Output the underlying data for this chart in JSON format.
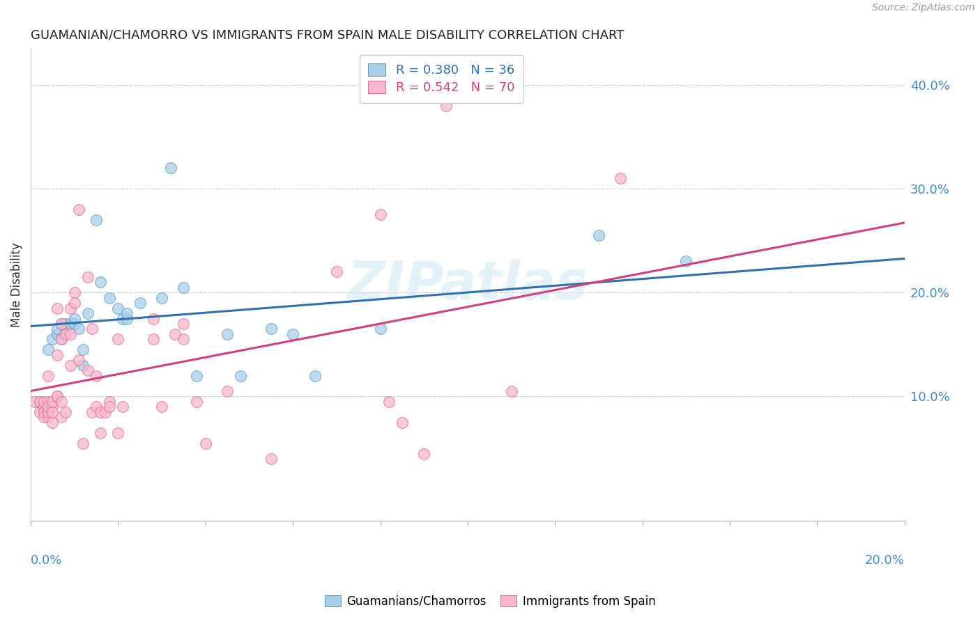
{
  "title": "GUAMANIAN/CHAMORRO VS IMMIGRANTS FROM SPAIN MALE DISABILITY CORRELATION CHART",
  "source": "Source: ZipAtlas.com",
  "ylabel": "Male Disability",
  "ytick_labels": [
    "10.0%",
    "20.0%",
    "30.0%",
    "40.0%"
  ],
  "ytick_values": [
    0.1,
    0.2,
    0.3,
    0.4
  ],
  "xlim": [
    0.0,
    0.2
  ],
  "ylim": [
    -0.02,
    0.435
  ],
  "legend_blue_R": "R = 0.380",
  "legend_blue_N": "N = 36",
  "legend_pink_R": "R = 0.542",
  "legend_pink_N": "N = 70",
  "blue_face_color": "#a8cfe8",
  "blue_edge_color": "#5a9ec9",
  "pink_face_color": "#f9b8cc",
  "pink_edge_color": "#e07090",
  "blue_line_color": "#3070b0",
  "pink_line_color": "#d04080",
  "watermark": "ZIPatlas",
  "background_color": "#ffffff",
  "grid_color": "#cccccc",
  "blue_scatter": [
    [
      0.004,
      0.145
    ],
    [
      0.005,
      0.155
    ],
    [
      0.006,
      0.16
    ],
    [
      0.006,
      0.165
    ],
    [
      0.007,
      0.155
    ],
    [
      0.007,
      0.17
    ],
    [
      0.008,
      0.165
    ],
    [
      0.008,
      0.17
    ],
    [
      0.009,
      0.165
    ],
    [
      0.009,
      0.17
    ],
    [
      0.01,
      0.17
    ],
    [
      0.01,
      0.175
    ],
    [
      0.011,
      0.165
    ],
    [
      0.012,
      0.145
    ],
    [
      0.012,
      0.13
    ],
    [
      0.013,
      0.18
    ],
    [
      0.015,
      0.27
    ],
    [
      0.016,
      0.21
    ],
    [
      0.018,
      0.195
    ],
    [
      0.02,
      0.185
    ],
    [
      0.021,
      0.175
    ],
    [
      0.022,
      0.175
    ],
    [
      0.022,
      0.18
    ],
    [
      0.025,
      0.19
    ],
    [
      0.03,
      0.195
    ],
    [
      0.032,
      0.32
    ],
    [
      0.035,
      0.205
    ],
    [
      0.038,
      0.12
    ],
    [
      0.045,
      0.16
    ],
    [
      0.048,
      0.12
    ],
    [
      0.055,
      0.165
    ],
    [
      0.06,
      0.16
    ],
    [
      0.065,
      0.12
    ],
    [
      0.08,
      0.165
    ],
    [
      0.13,
      0.255
    ],
    [
      0.15,
      0.23
    ]
  ],
  "pink_scatter": [
    [
      0.001,
      0.095
    ],
    [
      0.002,
      0.095
    ],
    [
      0.002,
      0.085
    ],
    [
      0.002,
      0.095
    ],
    [
      0.003,
      0.09
    ],
    [
      0.003,
      0.085
    ],
    [
      0.003,
      0.095
    ],
    [
      0.003,
      0.085
    ],
    [
      0.003,
      0.08
    ],
    [
      0.004,
      0.085
    ],
    [
      0.004,
      0.09
    ],
    [
      0.004,
      0.095
    ],
    [
      0.004,
      0.08
    ],
    [
      0.004,
      0.085
    ],
    [
      0.004,
      0.09
    ],
    [
      0.004,
      0.12
    ],
    [
      0.005,
      0.075
    ],
    [
      0.005,
      0.09
    ],
    [
      0.005,
      0.085
    ],
    [
      0.005,
      0.095
    ],
    [
      0.006,
      0.1
    ],
    [
      0.006,
      0.185
    ],
    [
      0.006,
      0.1
    ],
    [
      0.006,
      0.14
    ],
    [
      0.007,
      0.095
    ],
    [
      0.007,
      0.155
    ],
    [
      0.007,
      0.08
    ],
    [
      0.007,
      0.17
    ],
    [
      0.008,
      0.085
    ],
    [
      0.008,
      0.16
    ],
    [
      0.009,
      0.16
    ],
    [
      0.009,
      0.13
    ],
    [
      0.009,
      0.185
    ],
    [
      0.01,
      0.19
    ],
    [
      0.01,
      0.2
    ],
    [
      0.011,
      0.135
    ],
    [
      0.011,
      0.28
    ],
    [
      0.012,
      0.055
    ],
    [
      0.013,
      0.215
    ],
    [
      0.013,
      0.125
    ],
    [
      0.014,
      0.085
    ],
    [
      0.014,
      0.165
    ],
    [
      0.015,
      0.09
    ],
    [
      0.015,
      0.12
    ],
    [
      0.016,
      0.085
    ],
    [
      0.016,
      0.065
    ],
    [
      0.017,
      0.085
    ],
    [
      0.018,
      0.095
    ],
    [
      0.018,
      0.09
    ],
    [
      0.02,
      0.065
    ],
    [
      0.02,
      0.155
    ],
    [
      0.021,
      0.09
    ],
    [
      0.028,
      0.155
    ],
    [
      0.028,
      0.175
    ],
    [
      0.03,
      0.09
    ],
    [
      0.033,
      0.16
    ],
    [
      0.035,
      0.17
    ],
    [
      0.035,
      0.155
    ],
    [
      0.038,
      0.095
    ],
    [
      0.04,
      0.055
    ],
    [
      0.045,
      0.105
    ],
    [
      0.055,
      0.04
    ],
    [
      0.07,
      0.22
    ],
    [
      0.08,
      0.275
    ],
    [
      0.082,
      0.095
    ],
    [
      0.085,
      0.075
    ],
    [
      0.09,
      0.045
    ],
    [
      0.095,
      0.38
    ],
    [
      0.11,
      0.105
    ],
    [
      0.135,
      0.31
    ]
  ]
}
